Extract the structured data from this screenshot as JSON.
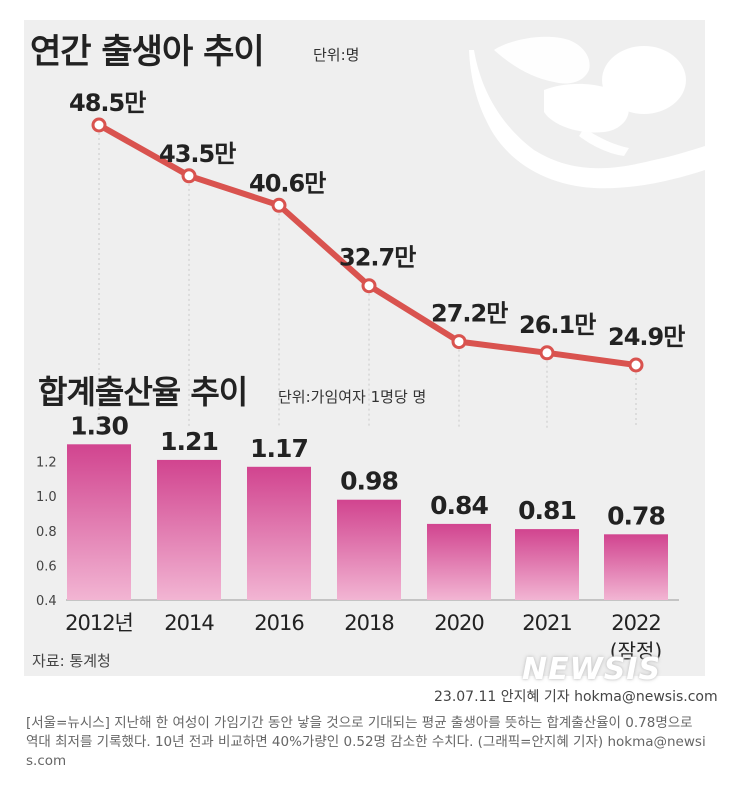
{
  "chart_data": [
    {
      "type": "line",
      "title": "연간 출생아 추이",
      "unit": "단위:명",
      "categories": [
        "2012",
        "2014",
        "2016",
        "2018",
        "2020",
        "2021",
        "2022"
      ],
      "values": [
        485000,
        435000,
        406000,
        327000,
        272000,
        261000,
        249000
      ],
      "labels": [
        "48.5만",
        "43.5만",
        "40.6만",
        "32.7만",
        "27.2만",
        "26.1만",
        "24.9만"
      ],
      "color": "#d9534f"
    },
    {
      "type": "bar",
      "title": "합계출산율 추이",
      "unit": "단위:가임여자 1명당 명",
      "categories": [
        "2012년",
        "2014",
        "2016",
        "2018",
        "2020",
        "2021",
        "2022"
      ],
      "category_note": "(잠정)",
      "values": [
        1.3,
        1.21,
        1.17,
        0.98,
        0.84,
        0.81,
        0.78
      ],
      "value_labels": [
        "1.30",
        "1.21",
        "1.17",
        "0.98",
        "0.84",
        "0.81",
        "0.78"
      ],
      "yticks": [
        "1.2",
        "1.0",
        "0.8",
        "0.6",
        "0.4"
      ],
      "ylim": [
        0.4,
        1.4
      ],
      "color_top": "#d1448f",
      "color_bottom": "#f2b5d3"
    }
  ],
  "source": "자료: 통계청",
  "watermark": "NEWSIS",
  "byline": "23.07.11  안지혜 기자  hokma@newsis.com",
  "caption": "[서울=뉴시스] 지난해 한 여성이 가임기간 동안 낳을 것으로 기대되는 평균 출생아를 뜻하는 합계출산율이 0.78명으로 역대 최저를 기록했다. 10년 전과 비교하면 40%가량인 0.52명 감소한 수치다. (그래픽=안지혜 기자) hokma@newsis.com"
}
